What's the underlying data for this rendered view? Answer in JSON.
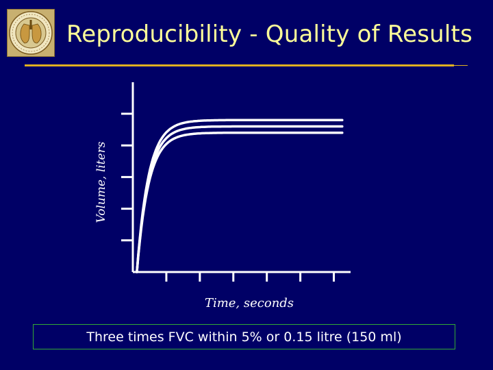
{
  "slide": {
    "title": "Reproducibility - Quality of Results",
    "caption": "Three times FVC within 5% or 0.15 litre (150 ml)",
    "logo_icon": "university-seal-icon"
  },
  "colors": {
    "background": "#000066",
    "title": "#ffff99",
    "rule": "#e0b020",
    "curves": "#ffffff",
    "caption_border": "#33aa33"
  },
  "chart_data": {
    "type": "line",
    "xlabel": "Time, seconds",
    "ylabel": "Volume, liters",
    "xlim": [
      0,
      6.5
    ],
    "ylim": [
      0,
      5
    ],
    "x_ticks": [
      1,
      2,
      3,
      4,
      5,
      6
    ],
    "y_ticks": [
      1,
      2,
      3,
      4,
      5
    ],
    "tick_labels_shown": false,
    "grid": false,
    "series": [
      {
        "plateau": 4.8,
        "tau": 0.35
      },
      {
        "plateau": 4.6,
        "tau": 0.35
      },
      {
        "plateau": 4.4,
        "tau": 0.35
      }
    ]
  }
}
